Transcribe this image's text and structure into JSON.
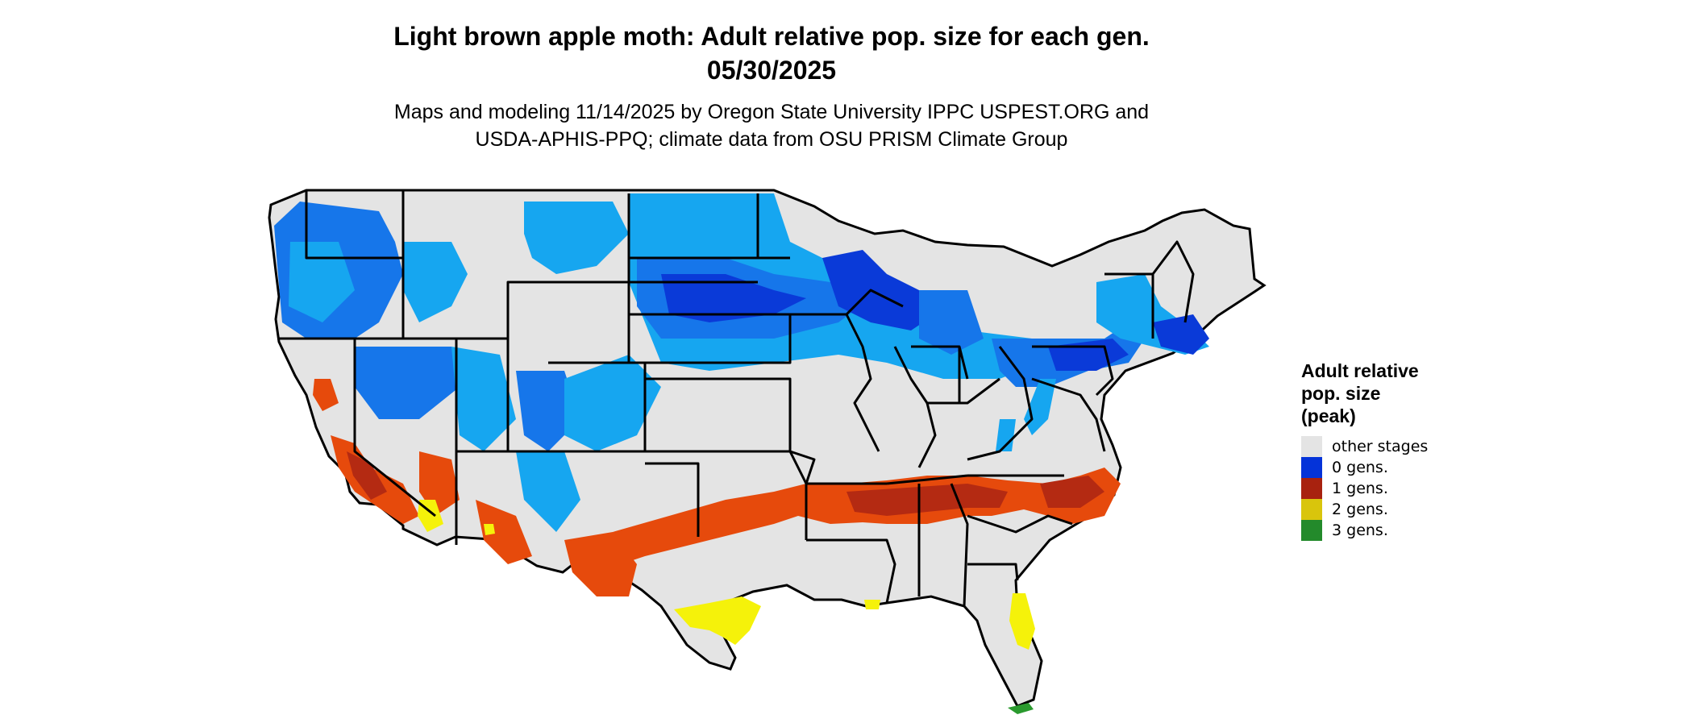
{
  "header": {
    "title_line1": "Light brown apple moth: Adult relative pop. size for each gen.",
    "title_line2": "05/30/2025",
    "subtitle_line1": "Maps and modeling 11/14/2025 by Oregon State University IPPC USPEST.ORG and",
    "subtitle_line2": "USDA-APHIS-PPQ; climate data from OSU PRISM Climate Group"
  },
  "legend": {
    "title_line1": "Adult relative",
    "title_line2": "pop. size",
    "title_line3": "(peak)",
    "items": [
      {
        "label": "other stages",
        "color": "#e4e4e4"
      },
      {
        "label": "0 gens.",
        "color": "#0433d9"
      },
      {
        "label": "1 gens.",
        "color": "#a8220f"
      },
      {
        "label": "2 gens.",
        "color": "#d9c50c"
      },
      {
        "label": "3 gens.",
        "color": "#238a2b"
      }
    ]
  },
  "map_colors": {
    "land": "#e4e4e4",
    "border": "#000000",
    "light_blue": "#16a6f0",
    "mid_blue": "#1676ea",
    "dark_blue": "#0a3ad8",
    "orange": "#e64a0c",
    "dark_red": "#b42a12",
    "yellow": "#f5f20a",
    "green": "#2a9a2e"
  }
}
